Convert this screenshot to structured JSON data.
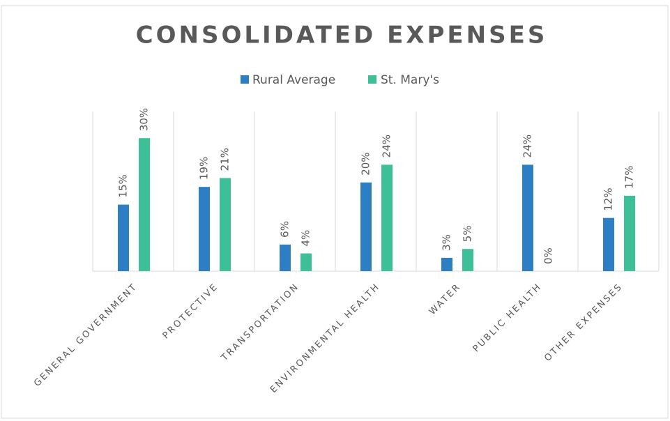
{
  "chart_data": {
    "type": "bar",
    "title": "CONSOLIDATED EXPENSES",
    "categories": [
      "GENERAL GOVERNMENT",
      "PROTECTIVE",
      "TRANSPORTATION",
      "ENVIRONMENTAL HEALTH",
      "WATER",
      "PUBLIC HEALTH",
      "OTHER EXPENSES"
    ],
    "series": [
      {
        "name": "Rural Average",
        "color": "#2e7ec4",
        "values": [
          15,
          19,
          6,
          20,
          3,
          24,
          12
        ],
        "value_labels": [
          "15%",
          "19%",
          "6%",
          "20%",
          "3%",
          "24%",
          "12%"
        ]
      },
      {
        "name": "St. Mary's",
        "color": "#3dbf98",
        "values": [
          30,
          21,
          4,
          24,
          5,
          0,
          17
        ],
        "value_labels": [
          "30%",
          "21%",
          "4%",
          "24%",
          "5%",
          "0%",
          "17%"
        ]
      }
    ],
    "ylim": [
      0,
      36
    ],
    "legend": "top"
  }
}
